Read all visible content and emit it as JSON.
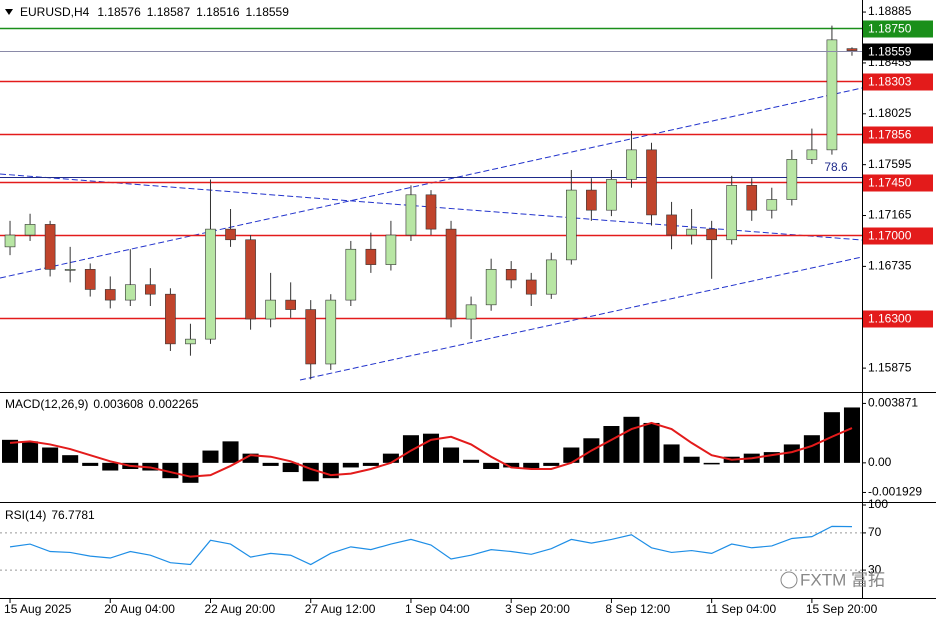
{
  "chart_data": [
    {
      "type": "candlestick",
      "title": "EURUSD,H4",
      "categories": [
        "15 Aug 2025",
        null,
        null,
        null,
        null,
        "20 Aug 04:00",
        null,
        null,
        null,
        null,
        "22 Aug 20:00",
        null,
        null,
        null,
        null,
        "27 Aug 12:00",
        null,
        null,
        null,
        null,
        "1 Sep 04:00",
        null,
        null,
        null,
        null,
        "3 Sep 20:00",
        null,
        null,
        null,
        null,
        "8 Sep 12:00",
        null,
        null,
        null,
        null,
        "11 Sep 04:00",
        null,
        null,
        null,
        null,
        "15 Sep 20:00",
        null,
        null
      ],
      "ohlc": [
        [
          1.169,
          1.1712,
          1.1683,
          1.17
        ],
        [
          1.17,
          1.1718,
          1.1695,
          1.1709
        ],
        [
          1.1709,
          1.1712,
          1.1665,
          1.1671
        ],
        [
          1.1671,
          1.169,
          1.166,
          1.1671
        ],
        [
          1.1671,
          1.1676,
          1.1648,
          1.1654
        ],
        [
          1.1654,
          1.1665,
          1.1638,
          1.1645
        ],
        [
          1.1645,
          1.1688,
          1.164,
          1.1658
        ],
        [
          1.1658,
          1.1672,
          1.164,
          1.165
        ],
        [
          1.165,
          1.1655,
          1.1602,
          1.1608
        ],
        [
          1.1608,
          1.1625,
          1.1598,
          1.1612
        ],
        [
          1.1612,
          1.1747,
          1.1608,
          1.1705
        ],
        [
          1.1705,
          1.1722,
          1.169,
          1.1696
        ],
        [
          1.1696,
          1.17,
          1.162,
          1.1629
        ],
        [
          1.1629,
          1.1668,
          1.1622,
          1.1645
        ],
        [
          1.1645,
          1.166,
          1.163,
          1.1637
        ],
        [
          1.1637,
          1.1645,
          1.1578,
          1.1591
        ],
        [
          1.1591,
          1.165,
          1.1586,
          1.1645
        ],
        [
          1.1645,
          1.1695,
          1.164,
          1.1688
        ],
        [
          1.1688,
          1.1702,
          1.1668,
          1.1675
        ],
        [
          1.1675,
          1.1712,
          1.167,
          1.17
        ],
        [
          1.17,
          1.1742,
          1.1695,
          1.1734
        ],
        [
          1.1734,
          1.1738,
          1.17,
          1.1705
        ],
        [
          1.1705,
          1.1712,
          1.1622,
          1.1629
        ],
        [
          1.1629,
          1.1648,
          1.1612,
          1.1641
        ],
        [
          1.1641,
          1.168,
          1.1636,
          1.1671
        ],
        [
          1.1671,
          1.1678,
          1.1655,
          1.1662
        ],
        [
          1.1662,
          1.1668,
          1.164,
          1.165
        ],
        [
          1.165,
          1.1685,
          1.1646,
          1.1679
        ],
        [
          1.1679,
          1.1755,
          1.1675,
          1.1738
        ],
        [
          1.1738,
          1.1748,
          1.1712,
          1.1721
        ],
        [
          1.1721,
          1.1755,
          1.1716,
          1.1747
        ],
        [
          1.1747,
          1.1788,
          1.174,
          1.1772
        ],
        [
          1.1772,
          1.1778,
          1.1708,
          1.1717
        ],
        [
          1.1717,
          1.1728,
          1.1688,
          1.17
        ],
        [
          1.17,
          1.1722,
          1.1692,
          1.1705
        ],
        [
          1.1705,
          1.1712,
          1.1663,
          1.1696
        ],
        [
          1.1696,
          1.175,
          1.1692,
          1.1742
        ],
        [
          1.1742,
          1.1748,
          1.1712,
          1.1721
        ],
        [
          1.1721,
          1.174,
          1.1714,
          1.173
        ],
        [
          1.173,
          1.1772,
          1.1725,
          1.1764
        ],
        [
          1.1764,
          1.179,
          1.176,
          1.1772
        ],
        [
          1.1772,
          1.1877,
          1.1768,
          1.1865
        ],
        [
          1.18576,
          1.18587,
          1.18516,
          1.18559
        ]
      ],
      "up_color": "#b8e6a4",
      "down_color": "#c0442c",
      "ylim": [
        1.1569,
        1.1897
      ],
      "yticks": [
        1.18885,
        1.18455,
        {
          "value": 1.18025,
          "label": "1.18025"
        },
        1.17595,
        1.17165,
        1.16735,
        1.15875
      ],
      "levels": [
        {
          "value": 1.1875,
          "label": "1.18750",
          "color": "#1a8f1a"
        },
        {
          "value": 1.18303,
          "color": "#e31b1b"
        },
        {
          "value": 1.17856,
          "color": "#e31b1b"
        },
        {
          "value": 1.1745,
          "label": "1.17450",
          "color": "#e31b1b"
        },
        {
          "value": 1.17,
          "label": "1.17000",
          "color": "#e31b1b"
        },
        {
          "value": 1.163,
          "label": "1.16300",
          "color": "#e31b1b"
        }
      ],
      "annotation": 78.6,
      "watermark": "FXTM 富拓"
    },
    {
      "type": "macd",
      "title": "MACD(12,26,9)",
      "histogram": {
        "color": "#000000",
        "values": [
          0.0015,
          0.0014,
          0.001,
          0.0005,
          -0.0002,
          -0.0005,
          -0.0004,
          -0.0005,
          -0.001,
          -0.0013,
          0.0008,
          0.0014,
          0.0006,
          -0.0002,
          -0.0006,
          -0.0012,
          -0.001,
          -0.0003,
          -0.0002,
          0.0006,
          0.0018,
          0.0019,
          0.001,
          0.0002,
          -0.0004,
          -0.0003,
          -0.0004,
          -0.0002,
          0.001,
          0.0016,
          0.0024,
          0.003,
          0.0026,
          0.0012,
          0.0004,
          -0.0001,
          0.0004,
          0.0006,
          0.0007,
          0.0012,
          0.0018,
          0.0033,
          0.003608
        ]
      },
      "signal": {
        "color": "#e31b1b",
        "values": [
          0.0013,
          0.0014,
          0.0012,
          0.0009,
          0.0005,
          0.0001,
          -0.0002,
          -0.0003,
          -0.0006,
          -0.0009,
          -0.0008,
          -0.0002,
          0.0005,
          0.0004,
          0.0001,
          -0.0004,
          -0.0008,
          -0.0007,
          -0.0004,
          0.0,
          0.0008,
          0.0015,
          0.0017,
          0.0012,
          0.0004,
          -0.0003,
          -0.0004,
          -0.0004,
          0.0,
          0.0008,
          0.0015,
          0.0022,
          0.0026,
          0.0022,
          0.0013,
          0.0005,
          0.0002,
          0.0003,
          0.0005,
          0.0007,
          0.0011,
          0.0017,
          0.002265
        ]
      },
      "ylim": [
        -0.00242,
        0.00442
      ],
      "yticks": [
        0.003871,
        {
          "value": 0,
          "label": "0.00"
        },
        -0.001929
      ]
    },
    {
      "type": "line",
      "title": "RSI(14)",
      "color": "#1e8ee6",
      "values": [
        55,
        58,
        50,
        49,
        45,
        43,
        50,
        46,
        38,
        36,
        62,
        58,
        44,
        48,
        46,
        36,
        48,
        55,
        52,
        58,
        63,
        57,
        42,
        46,
        52,
        50,
        47,
        53,
        63,
        59,
        63,
        68,
        54,
        49,
        51,
        48,
        58,
        54,
        56,
        64,
        66,
        77,
        76.7781
      ],
      "ylim": [
        0,
        100
      ],
      "yticks": [
        100,
        70,
        30
      ]
    }
  ]
}
